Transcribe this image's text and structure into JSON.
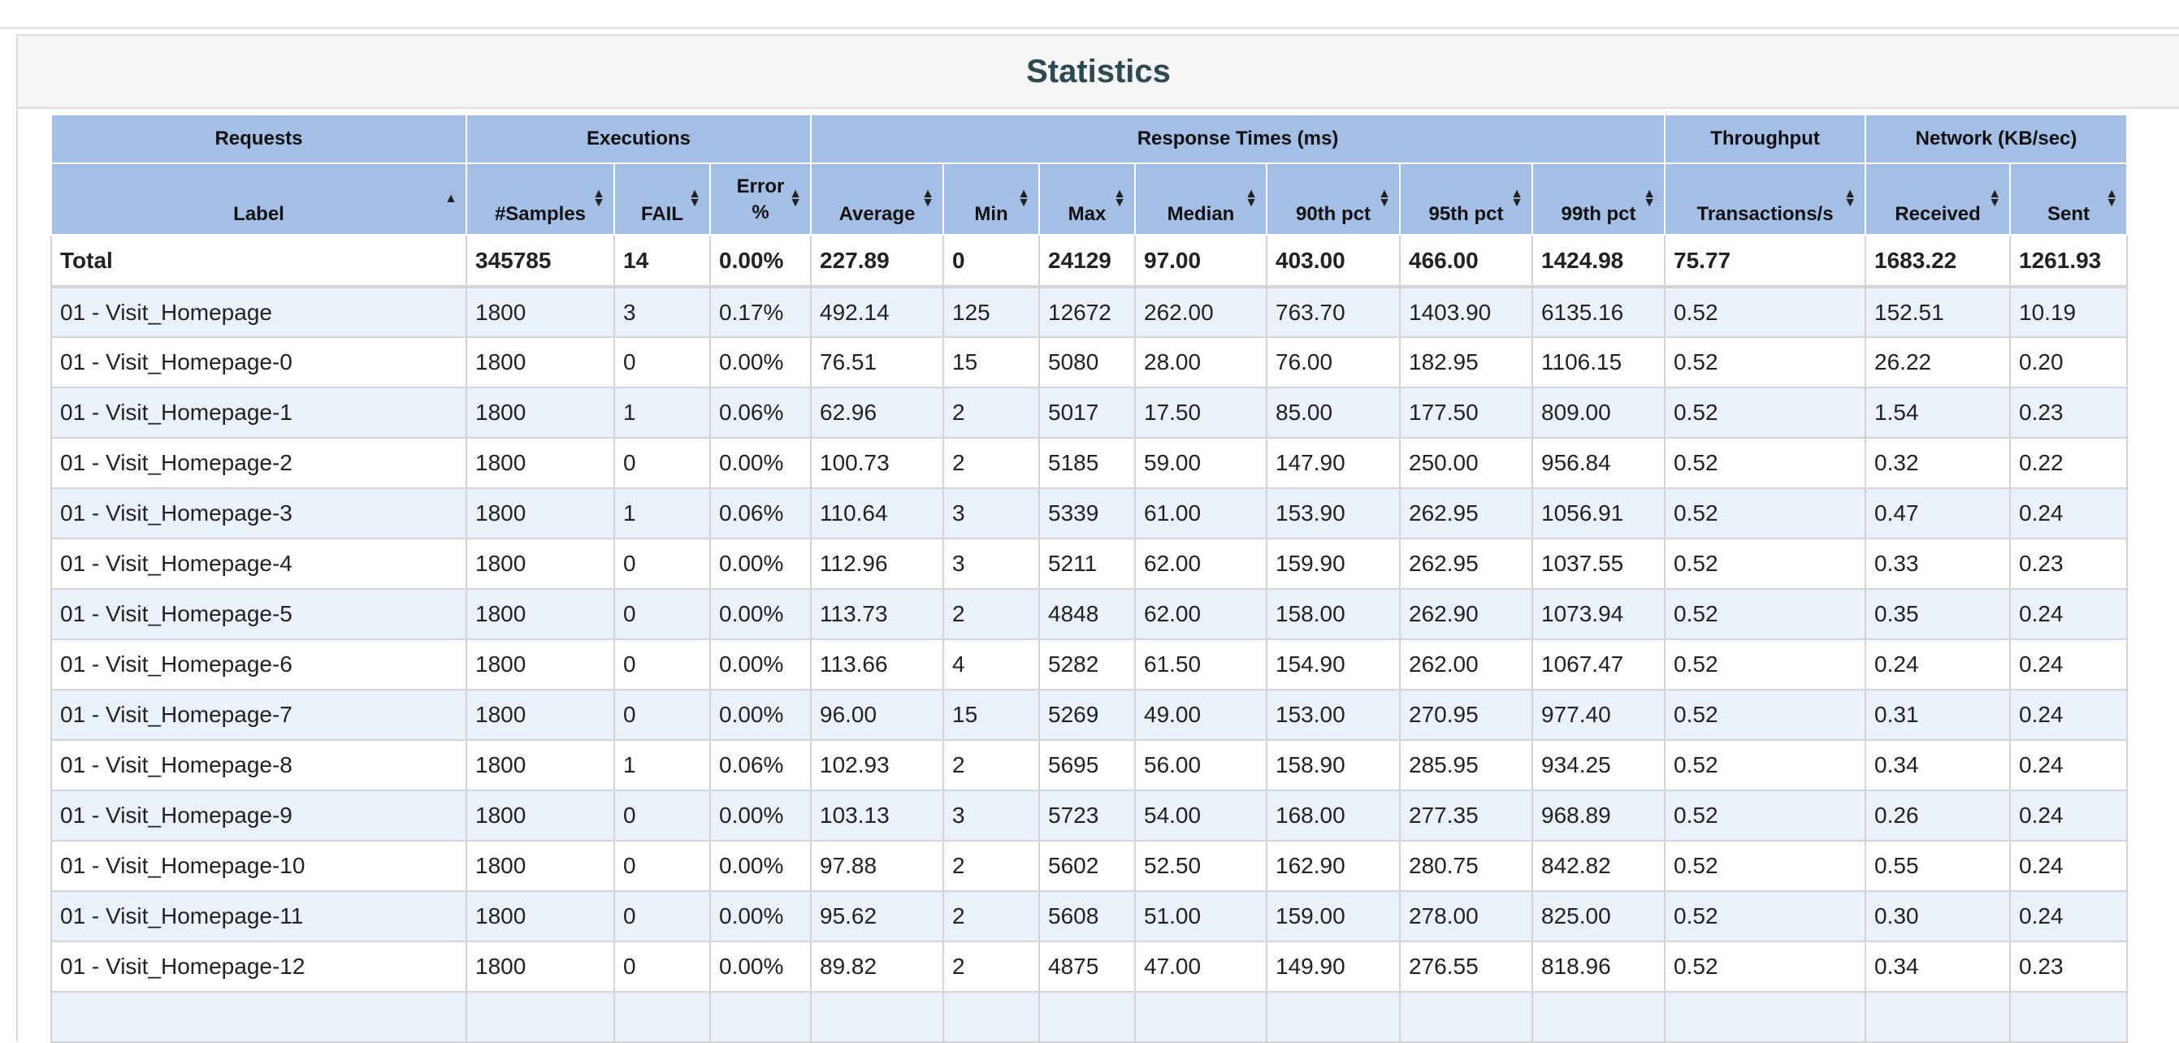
{
  "panel": {
    "title": "Statistics"
  },
  "table": {
    "groups": [
      {
        "key": "requests",
        "label": "Requests",
        "span": 1
      },
      {
        "key": "executions",
        "label": "Executions",
        "span": 3
      },
      {
        "key": "response_times",
        "label": "Response Times (ms)",
        "span": 7
      },
      {
        "key": "throughput",
        "label": "Throughput",
        "span": 1
      },
      {
        "key": "network",
        "label": "Network (KB/sec)",
        "span": 2
      }
    ],
    "columns": [
      {
        "key": "label",
        "label": "Label",
        "sort": "asc"
      },
      {
        "key": "samples",
        "label": "#Samples",
        "sort": "both"
      },
      {
        "key": "fail",
        "label": "FAIL",
        "sort": "both"
      },
      {
        "key": "error_pct",
        "label": "Error %",
        "sort": "both"
      },
      {
        "key": "average",
        "label": "Average",
        "sort": "both"
      },
      {
        "key": "min",
        "label": "Min",
        "sort": "both"
      },
      {
        "key": "max",
        "label": "Max",
        "sort": "both"
      },
      {
        "key": "median",
        "label": "Median",
        "sort": "both"
      },
      {
        "key": "p90",
        "label": "90th pct",
        "sort": "both"
      },
      {
        "key": "p95",
        "label": "95th pct",
        "sort": "both"
      },
      {
        "key": "p99",
        "label": "99th pct",
        "sort": "both"
      },
      {
        "key": "tps",
        "label": "Transactions/s",
        "sort": "both"
      },
      {
        "key": "received",
        "label": "Received",
        "sort": "both"
      },
      {
        "key": "sent",
        "label": "Sent",
        "sort": "both"
      }
    ],
    "total": [
      "Total",
      "345785",
      "14",
      "0.00%",
      "227.89",
      "0",
      "24129",
      "97.00",
      "403.00",
      "466.00",
      "1424.98",
      "75.77",
      "1683.22",
      "1261.93"
    ],
    "rows": [
      [
        "01 - Visit_Homepage",
        "1800",
        "3",
        "0.17%",
        "492.14",
        "125",
        "12672",
        "262.00",
        "763.70",
        "1403.90",
        "6135.16",
        "0.52",
        "152.51",
        "10.19"
      ],
      [
        "01 - Visit_Homepage-0",
        "1800",
        "0",
        "0.00%",
        "76.51",
        "15",
        "5080",
        "28.00",
        "76.00",
        "182.95",
        "1106.15",
        "0.52",
        "26.22",
        "0.20"
      ],
      [
        "01 - Visit_Homepage-1",
        "1800",
        "1",
        "0.06%",
        "62.96",
        "2",
        "5017",
        "17.50",
        "85.00",
        "177.50",
        "809.00",
        "0.52",
        "1.54",
        "0.23"
      ],
      [
        "01 - Visit_Homepage-2",
        "1800",
        "0",
        "0.00%",
        "100.73",
        "2",
        "5185",
        "59.00",
        "147.90",
        "250.00",
        "956.84",
        "0.52",
        "0.32",
        "0.22"
      ],
      [
        "01 - Visit_Homepage-3",
        "1800",
        "1",
        "0.06%",
        "110.64",
        "3",
        "5339",
        "61.00",
        "153.90",
        "262.95",
        "1056.91",
        "0.52",
        "0.47",
        "0.24"
      ],
      [
        "01 - Visit_Homepage-4",
        "1800",
        "0",
        "0.00%",
        "112.96",
        "3",
        "5211",
        "62.00",
        "159.90",
        "262.95",
        "1037.55",
        "0.52",
        "0.33",
        "0.23"
      ],
      [
        "01 - Visit_Homepage-5",
        "1800",
        "0",
        "0.00%",
        "113.73",
        "2",
        "4848",
        "62.00",
        "158.00",
        "262.90",
        "1073.94",
        "0.52",
        "0.35",
        "0.24"
      ],
      [
        "01 - Visit_Homepage-6",
        "1800",
        "0",
        "0.00%",
        "113.66",
        "4",
        "5282",
        "61.50",
        "154.90",
        "262.00",
        "1067.47",
        "0.52",
        "0.24",
        "0.24"
      ],
      [
        "01 - Visit_Homepage-7",
        "1800",
        "0",
        "0.00%",
        "96.00",
        "15",
        "5269",
        "49.00",
        "153.00",
        "270.95",
        "977.40",
        "0.52",
        "0.31",
        "0.24"
      ],
      [
        "01 - Visit_Homepage-8",
        "1800",
        "1",
        "0.06%",
        "102.93",
        "2",
        "5695",
        "56.00",
        "158.90",
        "285.95",
        "934.25",
        "0.52",
        "0.34",
        "0.24"
      ],
      [
        "01 - Visit_Homepage-9",
        "1800",
        "0",
        "0.00%",
        "103.13",
        "3",
        "5723",
        "54.00",
        "168.00",
        "277.35",
        "968.89",
        "0.52",
        "0.26",
        "0.24"
      ],
      [
        "01 - Visit_Homepage-10",
        "1800",
        "0",
        "0.00%",
        "97.88",
        "2",
        "5602",
        "52.50",
        "162.90",
        "280.75",
        "842.82",
        "0.52",
        "0.55",
        "0.24"
      ],
      [
        "01 - Visit_Homepage-11",
        "1800",
        "0",
        "0.00%",
        "95.62",
        "2",
        "5608",
        "51.00",
        "159.00",
        "278.00",
        "825.00",
        "0.52",
        "0.30",
        "0.24"
      ],
      [
        "01 - Visit_Homepage-12",
        "1800",
        "0",
        "0.00%",
        "89.82",
        "2",
        "4875",
        "47.00",
        "149.90",
        "276.55",
        "818.96",
        "0.52",
        "0.34",
        "0.23"
      ]
    ]
  }
}
